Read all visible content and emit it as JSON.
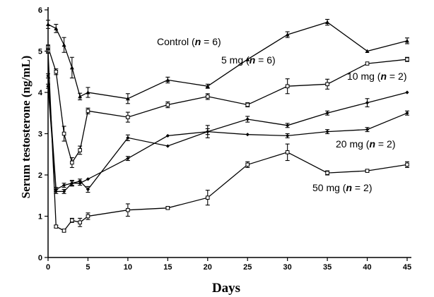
{
  "chart_data": {
    "type": "line",
    "xlabel": "Days",
    "ylabel": "Serum testosterone (ng/mL)",
    "xlim": [
      0,
      45
    ],
    "ylim": [
      0,
      6
    ],
    "xticks": [
      0,
      5,
      10,
      15,
      20,
      25,
      30,
      35,
      40,
      45
    ],
    "yticks": [
      0,
      1,
      2,
      3,
      4,
      5,
      6
    ],
    "grid": false,
    "series": [
      {
        "name": "Control",
        "n_value": "6",
        "marker": "triangle",
        "x": [
          0,
          1,
          2,
          3,
          4,
          5,
          10,
          15,
          20,
          25,
          30,
          35,
          40,
          45
        ],
        "y": [
          5.65,
          5.55,
          5.15,
          4.6,
          3.9,
          4.0,
          3.85,
          4.3,
          4.15,
          4.8,
          5.4,
          5.7,
          5.0,
          5.25
        ],
        "err": [
          0.1,
          0.1,
          0.18,
          0.25,
          0.08,
          0.12,
          0.12,
          0.07,
          0.05,
          0.0,
          0.07,
          0.07,
          0.0,
          0.07
        ]
      },
      {
        "name": "5 mg",
        "n_value": "6",
        "marker": "square",
        "x": [
          0,
          1,
          2,
          3,
          4,
          5,
          10,
          15,
          20,
          25,
          30,
          35,
          40,
          45
        ],
        "y": [
          5.1,
          4.5,
          3.0,
          2.3,
          2.6,
          3.55,
          3.4,
          3.7,
          3.9,
          3.7,
          4.15,
          4.2,
          4.7,
          4.8
        ],
        "err": [
          0.05,
          0.07,
          0.18,
          0.12,
          0.1,
          0.07,
          0.12,
          0.07,
          0.07,
          0.05,
          0.18,
          0.12,
          0.0,
          0.05
        ]
      },
      {
        "name": "10 mg",
        "n_value": "2",
        "marker": "diamond",
        "x": [
          0,
          1,
          2,
          3,
          4,
          5,
          10,
          15,
          20,
          25,
          30,
          35,
          40,
          45
        ],
        "y": [
          4.4,
          1.65,
          1.75,
          1.8,
          1.8,
          1.9,
          2.4,
          2.95,
          3.05,
          3.35,
          3.2,
          3.5,
          3.75,
          4.0
        ],
        "err": [
          0.05,
          0.05,
          0.05,
          0.05,
          0.05,
          0.0,
          0.05,
          0.0,
          0.15,
          0.07,
          0.05,
          0.05,
          0.1,
          0.0
        ]
      },
      {
        "name": "20 mg",
        "n_value": "2",
        "marker": "diamond",
        "x": [
          0,
          1,
          2,
          3,
          4,
          5,
          10,
          15,
          20,
          25,
          30,
          35,
          40,
          45
        ],
        "y": [
          4.15,
          1.6,
          1.6,
          1.8,
          1.85,
          1.65,
          2.9,
          2.7,
          3.05,
          2.98,
          2.95,
          3.05,
          3.1,
          3.5
        ],
        "err": [
          0.05,
          0.05,
          0.05,
          0.07,
          0.05,
          0.07,
          0.07,
          0.0,
          0.07,
          0.0,
          0.05,
          0.05,
          0.05,
          0.05
        ]
      },
      {
        "name": "50 mg",
        "n_value": "2",
        "marker": "square",
        "x": [
          0,
          1,
          2,
          3,
          4,
          5,
          10,
          15,
          20,
          25,
          30,
          35,
          40,
          45
        ],
        "y": [
          5.0,
          0.75,
          0.65,
          0.9,
          0.85,
          1.0,
          1.15,
          1.2,
          1.45,
          2.25,
          2.55,
          2.05,
          2.1,
          2.25
        ],
        "err": [
          0.05,
          0.03,
          0.03,
          0.05,
          0.1,
          0.08,
          0.15,
          0.03,
          0.18,
          0.07,
          0.2,
          0.05,
          0.03,
          0.07
        ]
      }
    ]
  }
}
